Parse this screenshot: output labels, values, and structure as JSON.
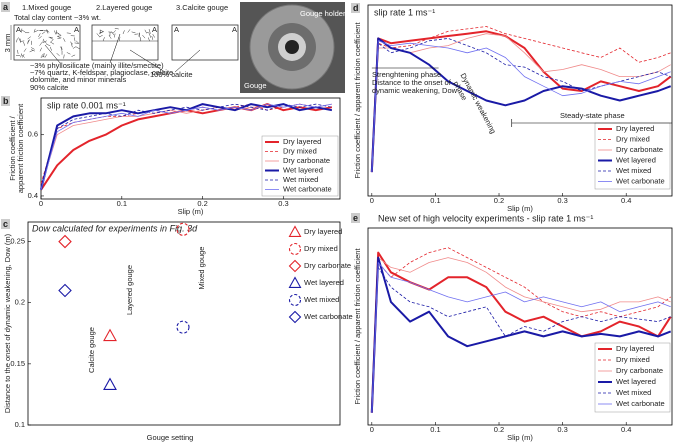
{
  "figure_a": {
    "panel": "a",
    "labels": [
      "1.Mixed gouge",
      "2.Layered gouge",
      "3.Calcite gouge"
    ],
    "clay": "Total clay content ~3% wt.",
    "thickness": "3 mm",
    "section_mark": "A",
    "mixed_composition": [
      "~3% phyllosilicate (mainly illite/smectite)",
      "~7% quartz, K-feldspar, plagioclase, calcite,",
      "dolomite, and minor minerals",
      "90% calcite"
    ],
    "calcite_composition": "100% calcite",
    "photo_labels": [
      "Gouge holder",
      "Gouge"
    ]
  },
  "chart_data": [
    {
      "panel": "b",
      "type": "line",
      "title": "slip rate 0.001 ms⁻¹",
      "xlabel": "Slip (m)",
      "ylabel": [
        "Friction coefficient /",
        "apparent friction coefficient"
      ],
      "xlim": [
        0,
        0.37
      ],
      "ylim": [
        0.39,
        0.72
      ],
      "xticks": [
        0,
        0.1,
        0.2,
        0.3
      ],
      "yticks": [
        0.4,
        0.6
      ],
      "x": [
        0,
        0.02,
        0.04,
        0.06,
        0.08,
        0.1,
        0.12,
        0.14,
        0.16,
        0.18,
        0.2,
        0.22,
        0.24,
        0.26,
        0.28,
        0.3,
        0.32,
        0.34,
        0.36
      ],
      "legend": "lower right",
      "series": [
        {
          "name": "Dry layered",
          "color": "#e3242b",
          "dash": false,
          "width": 2,
          "values": [
            0.42,
            0.5,
            0.55,
            0.58,
            0.6,
            0.63,
            0.65,
            0.66,
            0.67,
            0.68,
            0.67,
            0.68,
            0.69,
            0.68,
            0.7,
            0.68,
            0.69,
            0.68,
            0.69
          ]
        },
        {
          "name": "Dry mixed",
          "color": "#e3242b",
          "dash": true,
          "width": 0.8,
          "values": [
            0.44,
            0.62,
            0.64,
            0.65,
            0.66,
            0.66,
            0.67,
            0.68,
            0.67,
            0.68,
            0.69,
            0.68,
            0.69,
            0.7,
            0.68,
            0.69,
            0.7,
            0.69,
            0.68
          ]
        },
        {
          "name": "Dry carbonate",
          "color": "#f08a8a",
          "dash": false,
          "width": 0.8,
          "values": [
            0.43,
            0.6,
            0.63,
            0.64,
            0.65,
            0.66,
            0.66,
            0.67,
            0.68,
            0.67,
            0.68,
            0.69,
            0.68,
            0.69,
            0.69,
            0.7,
            0.68,
            0.69,
            0.7
          ]
        },
        {
          "name": "Wet layered",
          "color": "#1a1aa6",
          "dash": false,
          "width": 2,
          "values": [
            0.42,
            0.63,
            0.66,
            0.67,
            0.67,
            0.68,
            0.67,
            0.68,
            0.69,
            0.68,
            0.7,
            0.69,
            0.68,
            0.7,
            0.69,
            0.7,
            0.68,
            0.69,
            0.68
          ]
        },
        {
          "name": "Wet mixed",
          "color": "#1a1aa6",
          "dash": true,
          "width": 0.8,
          "values": [
            0.43,
            0.62,
            0.65,
            0.66,
            0.67,
            0.66,
            0.68,
            0.67,
            0.68,
            0.69,
            0.68,
            0.69,
            0.7,
            0.69,
            0.68,
            0.7,
            0.69,
            0.7,
            0.69
          ]
        },
        {
          "name": "Wet carbonate",
          "color": "#7070f0",
          "dash": false,
          "width": 0.8,
          "values": [
            0.42,
            0.61,
            0.64,
            0.65,
            0.66,
            0.67,
            0.66,
            0.68,
            0.67,
            0.68,
            0.69,
            0.68,
            0.69,
            0.68,
            0.7,
            0.69,
            0.7,
            0.69,
            0.7
          ]
        }
      ]
    },
    {
      "panel": "c",
      "type": "scatter",
      "title": "Dow calculated for experiments in Fig. 3d",
      "xlabel": "Gouge setting",
      "ylabel": "Distance to the onset of dynamic weakening, Dow (m)",
      "categories": [
        "Calcite gouge",
        "Layered gouge",
        "Mixed gouge"
      ],
      "ylim": [
        0.1,
        0.266
      ],
      "yticks": [
        0.1,
        0.15,
        0.2,
        0.25
      ],
      "legend": "upper right",
      "series": [
        {
          "name": "Dry layered",
          "color": "#e3242b",
          "marker": "triangle",
          "dash": false,
          "values": [
            null,
            0.173,
            null
          ]
        },
        {
          "name": "Dry mixed",
          "color": "#e3242b",
          "marker": "circle",
          "dash": true,
          "values": [
            null,
            null,
            0.26
          ]
        },
        {
          "name": "Dry carbonate",
          "color": "#e3242b",
          "marker": "diamond",
          "dash": false,
          "values": [
            0.25,
            null,
            null
          ]
        },
        {
          "name": "Wet layered",
          "color": "#1a1aa6",
          "marker": "triangle",
          "dash": false,
          "values": [
            null,
            0.133,
            null
          ]
        },
        {
          "name": "Wet mixed",
          "color": "#1a1aa6",
          "marker": "circle",
          "dash": true,
          "values": [
            null,
            null,
            0.18
          ]
        },
        {
          "name": "Wet carbonate",
          "color": "#1a1aa6",
          "marker": "diamond",
          "dash": false,
          "values": [
            0.21,
            null,
            null
          ]
        }
      ]
    },
    {
      "panel": "d",
      "type": "line",
      "title": "slip rate 1 ms⁻¹",
      "xlabel": "Slip (m)",
      "ylabel": "Friction coefficient / apparent friction coefficient",
      "xlim": [
        -0.006,
        0.472
      ],
      "ylim": [
        0,
        0.8
      ],
      "xticks": [
        0,
        0.1,
        0.2,
        0.3,
        0.4
      ],
      "x": [
        0,
        0.01,
        0.03,
        0.06,
        0.09,
        0.12,
        0.15,
        0.18,
        0.21,
        0.24,
        0.27,
        0.3,
        0.33,
        0.36,
        0.39,
        0.42,
        0.45,
        0.47
      ],
      "annotations": [
        "Strenghtening phase",
        "Distance to the onset of",
        "dynamic weakening, Dow",
        "Dynamic weakening",
        "phase",
        "Steady-state phase"
      ],
      "legend": "lower right",
      "series": [
        {
          "name": "Dry layered",
          "color": "#e3242b",
          "dash": false,
          "width": 2,
          "values": [
            0.1,
            0.66,
            0.64,
            0.65,
            0.66,
            0.67,
            0.68,
            0.69,
            0.67,
            0.62,
            0.52,
            0.45,
            0.44,
            0.48,
            0.46,
            0.44,
            0.46,
            0.5
          ]
        },
        {
          "name": "Dry mixed",
          "color": "#e3242b",
          "dash": true,
          "width": 0.8,
          "values": [
            0.1,
            0.64,
            0.62,
            0.63,
            0.66,
            0.69,
            0.7,
            0.71,
            0.68,
            0.66,
            0.64,
            0.62,
            0.6,
            0.58,
            0.62,
            0.56,
            0.58,
            0.6
          ]
        },
        {
          "name": "Dry carbonate",
          "color": "#f08a8a",
          "dash": false,
          "width": 0.8,
          "values": [
            0.1,
            0.62,
            0.62,
            0.6,
            0.62,
            0.63,
            0.66,
            0.68,
            0.67,
            0.6,
            0.52,
            0.53,
            0.55,
            0.53,
            0.5,
            0.5,
            0.52,
            0.55
          ]
        },
        {
          "name": "Wet layered",
          "color": "#1a1aa6",
          "dash": false,
          "width": 2,
          "values": [
            0.1,
            0.66,
            0.62,
            0.6,
            0.55,
            0.48,
            0.44,
            0.4,
            0.38,
            0.4,
            0.44,
            0.46,
            0.45,
            0.42,
            0.4,
            0.42,
            0.44,
            0.46
          ]
        },
        {
          "name": "Wet mixed",
          "color": "#1a1aa6",
          "dash": true,
          "width": 0.8,
          "values": [
            0.1,
            0.64,
            0.6,
            0.62,
            0.65,
            0.66,
            0.63,
            0.6,
            0.55,
            0.54,
            0.5,
            0.48,
            0.44,
            0.46,
            0.48,
            0.5,
            0.52,
            0.5
          ]
        },
        {
          "name": "Wet carbonate",
          "color": "#7070f0",
          "dash": false,
          "width": 0.8,
          "values": [
            0.1,
            0.65,
            0.63,
            0.64,
            0.63,
            0.62,
            0.6,
            0.62,
            0.58,
            0.5,
            0.46,
            0.42,
            0.43,
            0.46,
            0.48,
            0.47,
            0.5,
            0.52
          ]
        }
      ]
    },
    {
      "panel": "e",
      "type": "line",
      "title": "New set of high velocity experiments - slip rate 1 ms⁻¹",
      "xlabel": "Slip (m)",
      "ylabel": "Friction coefficient / apparent friction coefficient",
      "xlim": [
        -0.006,
        0.472
      ],
      "ylim": [
        0,
        0.8
      ],
      "xticks": [
        0,
        0.1,
        0.2,
        0.3,
        0.4
      ],
      "x": [
        0,
        0.01,
        0.03,
        0.06,
        0.09,
        0.12,
        0.15,
        0.18,
        0.21,
        0.24,
        0.27,
        0.3,
        0.33,
        0.36,
        0.39,
        0.42,
        0.45,
        0.47
      ],
      "legend": "lower right",
      "series": [
        {
          "name": "Dry layered",
          "color": "#e3242b",
          "dash": false,
          "width": 2,
          "values": [
            0.05,
            0.7,
            0.62,
            0.58,
            0.55,
            0.6,
            0.6,
            0.56,
            0.46,
            0.42,
            0.44,
            0.4,
            0.36,
            0.38,
            0.42,
            0.4,
            0.36,
            0.44
          ]
        },
        {
          "name": "Dry mixed",
          "color": "#e3242b",
          "dash": true,
          "width": 0.8,
          "values": [
            0.05,
            0.66,
            0.6,
            0.66,
            0.7,
            0.72,
            0.68,
            0.64,
            0.6,
            0.56,
            0.5,
            0.46,
            0.44,
            0.46,
            0.44,
            0.46,
            0.48,
            0.52
          ]
        },
        {
          "name": "Dry carbonate",
          "color": "#f08a8a",
          "dash": false,
          "width": 0.8,
          "values": [
            0.05,
            0.68,
            0.64,
            0.62,
            0.66,
            0.68,
            0.66,
            0.62,
            0.56,
            0.52,
            0.5,
            0.48,
            0.46,
            0.47,
            0.5,
            0.5,
            0.52,
            0.5
          ]
        },
        {
          "name": "Wet layered",
          "color": "#1a1aa6",
          "dash": false,
          "width": 2,
          "values": [
            0.05,
            0.68,
            0.5,
            0.42,
            0.46,
            0.36,
            0.32,
            0.34,
            0.36,
            0.38,
            0.36,
            0.38,
            0.36,
            0.37,
            0.36,
            0.38,
            0.36,
            0.38
          ]
        },
        {
          "name": "Wet mixed",
          "color": "#1a1aa6",
          "dash": true,
          "width": 0.8,
          "values": [
            0.05,
            0.64,
            0.56,
            0.5,
            0.48,
            0.44,
            0.46,
            0.48,
            0.36,
            0.4,
            0.38,
            0.42,
            0.44,
            0.42,
            0.44,
            0.43,
            0.42,
            0.44
          ]
        },
        {
          "name": "Wet carbonate",
          "color": "#7070f0",
          "dash": false,
          "width": 0.8,
          "values": [
            0.05,
            0.66,
            0.6,
            0.58,
            0.55,
            0.52,
            0.5,
            0.52,
            0.54,
            0.5,
            0.52,
            0.5,
            0.48,
            0.5,
            0.46,
            0.48,
            0.5,
            0.48
          ]
        }
      ]
    }
  ]
}
